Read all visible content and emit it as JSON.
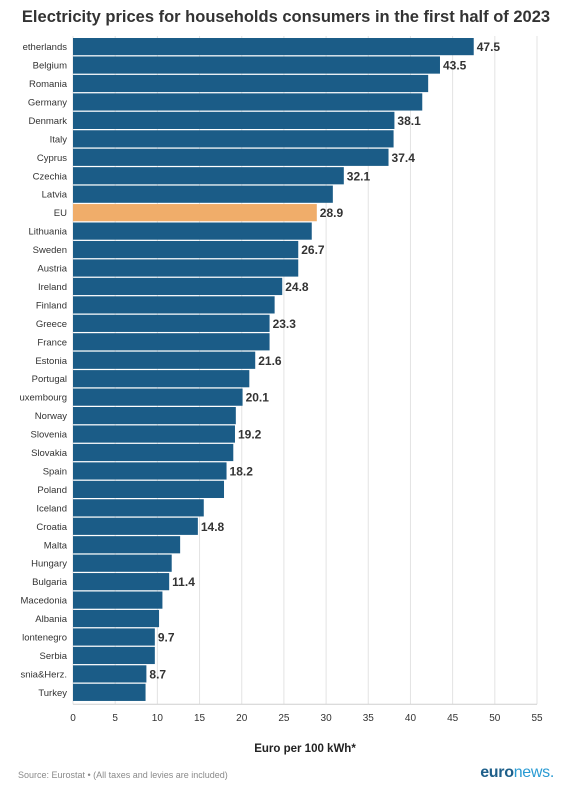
{
  "title": "Electricity prices for households consumers in the first half of 2023",
  "chart_data": {
    "type": "bar",
    "orientation": "horizontal",
    "categories": [
      "etherlands",
      "Belgium",
      "Romania",
      "Germany",
      "Denmark",
      "Italy",
      "Cyprus",
      "Czechia",
      "Latvia",
      "EU",
      "Lithuania",
      "Sweden",
      "Austria",
      "Ireland",
      "Finland",
      "Greece",
      "France",
      "Estonia",
      "Portugal",
      "uxembourg",
      "Norway",
      "Slovenia",
      "Slovakia",
      "Spain",
      "Poland",
      "Iceland",
      "Croatia",
      "Malta",
      "Hungary",
      "Bulgaria",
      "Macedonia",
      "Albania",
      "lontenegro",
      "Serbia",
      "snia&Herz.",
      "Turkey"
    ],
    "values": [
      47.5,
      43.5,
      42.1,
      41.4,
      38.1,
      38.0,
      37.4,
      32.1,
      30.8,
      28.9,
      28.3,
      26.7,
      26.7,
      24.8,
      23.9,
      23.3,
      23.3,
      21.6,
      20.9,
      20.1,
      19.3,
      19.2,
      19.0,
      18.2,
      17.9,
      15.5,
      14.8,
      12.7,
      11.7,
      11.4,
      10.6,
      10.2,
      9.7,
      9.7,
      8.7,
      8.6
    ],
    "data_labels": [
      "47.5",
      "43.5",
      null,
      null,
      "38.1",
      null,
      "37.4",
      "32.1",
      null,
      "28.9",
      null,
      "26.7",
      null,
      "24.8",
      null,
      "23.3",
      null,
      "21.6",
      null,
      "20.1",
      null,
      "19.2",
      null,
      "18.2",
      null,
      null,
      "14.8",
      null,
      null,
      "11.4",
      null,
      null,
      "9.7",
      null,
      "8.7",
      null
    ],
    "highlight_category": "EU",
    "xlabel": "Euro per 100 kWh*",
    "xlim": [
      0,
      55
    ],
    "xticks": [
      0,
      5,
      10,
      15,
      20,
      25,
      30,
      35,
      40,
      45,
      50,
      55
    ],
    "grid": true,
    "colors": {
      "bar": "#1b5c87",
      "highlight": "#f0ad6a",
      "grid": "#e3e3e3",
      "label": "#333333"
    }
  },
  "footer": {
    "source": "Source: Eurostat • (All taxes and levies are included)",
    "brand_bold": "euro",
    "brand_light": "news."
  }
}
